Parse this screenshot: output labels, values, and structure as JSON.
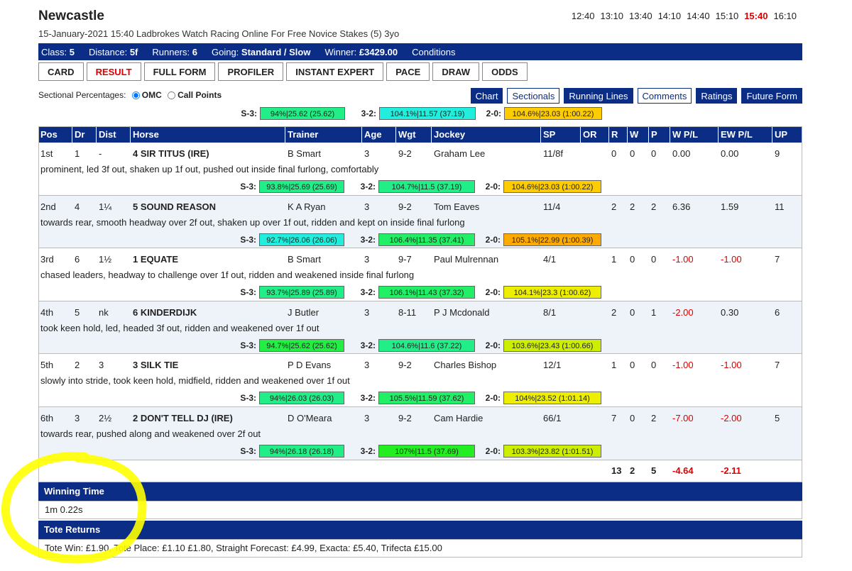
{
  "header": {
    "course": "Newcastle",
    "subtitle": "15-January-2021 15:40 Ladbrokes Watch Racing Online For Free Novice Stakes (5) 3yo",
    "times": [
      "12:40",
      "13:10",
      "13:40",
      "14:10",
      "14:40",
      "15:10",
      "15:40",
      "16:10"
    ],
    "active_time": "15:40"
  },
  "infobar": {
    "class_label": "Class:",
    "class_value": "5",
    "distance_label": "Distance:",
    "distance_value": "5f",
    "runners_label": "Runners:",
    "runners_value": "6",
    "going_label": "Going:",
    "going_value": "Standard / Slow",
    "winner_label": "Winner:",
    "winner_value": "£3429.00",
    "conditions": "Conditions"
  },
  "tabs": [
    {
      "label": "CARD",
      "active": false
    },
    {
      "label": "RESULT",
      "active": true
    },
    {
      "label": "FULL FORM",
      "active": false
    },
    {
      "label": "PROFILER",
      "active": false
    },
    {
      "label": "INSTANT EXPERT",
      "active": false
    },
    {
      "label": "PACE",
      "active": false
    },
    {
      "label": "DRAW",
      "active": false
    },
    {
      "label": "ODDS",
      "active": false
    }
  ],
  "sectionals": {
    "label": "Sectional Percentages:",
    "option_omc": "OMC",
    "option_call": "Call Points",
    "selected": "OMC"
  },
  "right_buttons": [
    {
      "label": "Chart",
      "style": "dark"
    },
    {
      "label": "Sectionals",
      "style": "light"
    },
    {
      "label": "Running Lines",
      "style": "dark"
    },
    {
      "label": "Comments",
      "style": "light"
    },
    {
      "label": "Ratings",
      "style": "dark"
    },
    {
      "label": "Future Form",
      "style": "dark"
    }
  ],
  "race_sectionals": {
    "s3": {
      "label": "S-3:",
      "text": "94%|25.62 (25.62)",
      "color": "#22ee88"
    },
    "s32": {
      "label": "3-2:",
      "text": "104.1%|11.57 (37.19)",
      "color": "#22eedd"
    },
    "s20": {
      "label": "2-0:",
      "text": "104.6%|23.03 (1:00.22)",
      "color": "#ffcc00"
    }
  },
  "columns": [
    "Pos",
    "Dr",
    "Dist",
    "Horse",
    "Trainer",
    "Age",
    "Wgt",
    "Jockey",
    "SP",
    "OR",
    "R",
    "W",
    "P",
    "W P/L",
    "EW P/L",
    "UP"
  ],
  "rows": [
    {
      "pos": "1st",
      "dr": "1",
      "dist": "-",
      "horse": "4 SIR TITUS (IRE)",
      "trainer": "B Smart",
      "age": "3",
      "wgt": "9-2",
      "jockey": "Graham Lee",
      "sp": "11/8f",
      "or": "",
      "r": "0",
      "w": "0",
      "p": "0",
      "wpl": "0.00",
      "ewpl": "0.00",
      "up": "9",
      "comment": "prominent, led 3f out, shaken up 1f out, pushed out inside final furlong, comfortably",
      "s3": {
        "text": "93.8%|25.69 (25.69)",
        "color": "#22ee88"
      },
      "s32": {
        "text": "104.7%|11.5 (37.19)",
        "color": "#22ee88"
      },
      "s20": {
        "text": "104.6%|23.03 (1:00.22)",
        "color": "#ffcc00"
      }
    },
    {
      "pos": "2nd",
      "dr": "4",
      "dist": "1¼",
      "horse": "5 SOUND REASON",
      "trainer": "K A Ryan",
      "age": "3",
      "wgt": "9-2",
      "jockey": "Tom Eaves",
      "sp": "11/4",
      "or": "",
      "r": "2",
      "w": "2",
      "p": "2",
      "wpl": "6.36",
      "ewpl": "1.59",
      "up": "11",
      "comment": "towards rear, smooth headway over 2f out, shaken up over 1f out, ridden and kept on inside final furlong",
      "s3": {
        "text": "92.7%|26.06 (26.06)",
        "color": "#22eedd"
      },
      "s32": {
        "text": "106.4%|11.35 (37.41)",
        "color": "#22ee66"
      },
      "s20": {
        "text": "105.1%|22.99 (1:00.39)",
        "color": "#ffaa00"
      }
    },
    {
      "pos": "3rd",
      "dr": "6",
      "dist": "1½",
      "horse": "1 EQUATE",
      "trainer": "B Smart",
      "age": "3",
      "wgt": "9-7",
      "jockey": "Paul Mulrennan",
      "sp": "4/1",
      "or": "",
      "r": "1",
      "w": "0",
      "p": "0",
      "wpl": "-1.00",
      "ewpl": "-1.00",
      "up": "7",
      "comment": "chased leaders, headway to challenge over 1f out, ridden and weakened inside final furlong",
      "s3": {
        "text": "93.7%|25.89 (25.89)",
        "color": "#22ee88"
      },
      "s32": {
        "text": "106.1%|11.43 (37.32)",
        "color": "#22ee66"
      },
      "s20": {
        "text": "104.1%|23.3 (1:00.62)",
        "color": "#eeee00"
      }
    },
    {
      "pos": "4th",
      "dr": "5",
      "dist": "nk",
      "horse": "6 KINDERDIJK",
      "trainer": "J Butler",
      "age": "3",
      "wgt": "8-11",
      "jockey": "P J Mcdonald",
      "sp": "8/1",
      "or": "",
      "r": "2",
      "w": "0",
      "p": "1",
      "wpl": "-2.00",
      "ewpl": "0.30",
      "up": "6",
      "comment": "took keen hold, led, headed 3f out, ridden and weakened over 1f out",
      "s3": {
        "text": "94.7%|25.62 (25.62)",
        "color": "#22ee44"
      },
      "s32": {
        "text": "104.6%|11.6 (37.22)",
        "color": "#22ee88"
      },
      "s20": {
        "text": "103.6%|23.43 (1:00.66)",
        "color": "#ccee00"
      }
    },
    {
      "pos": "5th",
      "dr": "2",
      "dist": "3",
      "horse": "3 SILK TIE",
      "trainer": "P D Evans",
      "age": "3",
      "wgt": "9-2",
      "jockey": "Charles Bishop",
      "sp": "12/1",
      "or": "",
      "r": "1",
      "w": "0",
      "p": "0",
      "wpl": "-1.00",
      "ewpl": "-1.00",
      "up": "7",
      "comment": "slowly into stride, took keen hold, midfield, ridden and weakened over 1f out",
      "s3": {
        "text": "94%|26.03 (26.03)",
        "color": "#22ee88"
      },
      "s32": {
        "text": "105.5%|11.59 (37.62)",
        "color": "#22ee66"
      },
      "s20": {
        "text": "104%|23.52 (1:01.14)",
        "color": "#eeee00"
      }
    },
    {
      "pos": "6th",
      "dr": "3",
      "dist": "2½",
      "horse": "2 DON'T TELL DJ (IRE)",
      "trainer": "D O'Meara",
      "age": "3",
      "wgt": "9-2",
      "jockey": "Cam Hardie",
      "sp": "66/1",
      "or": "",
      "r": "7",
      "w": "0",
      "p": "2",
      "wpl": "-7.00",
      "ewpl": "-2.00",
      "up": "5",
      "comment": "towards rear, pushed along and weakened over 2f out",
      "s3": {
        "text": "94%|26.18 (26.18)",
        "color": "#22ee88"
      },
      "s32": {
        "text": "107%|11.5 (37.69)",
        "color": "#22ee22"
      },
      "s20": {
        "text": "103.3%|23.82 (1:01.51)",
        "color": "#ccee00"
      }
    }
  ],
  "totals": {
    "r": "13",
    "w": "2",
    "p": "5",
    "wpl": "-4.64",
    "ewpl": "-2.11"
  },
  "winning_time": {
    "title": "Winning Time",
    "value": "1m 0.22s"
  },
  "tote": {
    "title": "Tote Returns",
    "value": "Tote Win: £1.90, Tote Place: £1.10 £1.80, Straight Forecast: £4.99, Exacta: £5.40, Trifecta £15.00"
  },
  "colors": {
    "header_blue": "#0b2d86",
    "negative": "#dd0000",
    "highlight": "#ffff00"
  }
}
